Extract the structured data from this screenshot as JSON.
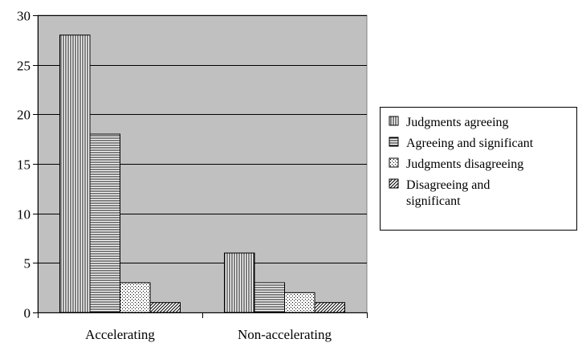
{
  "chart_data": {
    "type": "bar",
    "title": "",
    "xlabel": "",
    "ylabel": "",
    "categories": [
      "Accelerating",
      "Non-accelerating"
    ],
    "series": [
      {
        "name": "Judgments agreeing",
        "values": [
          28,
          6
        ],
        "pattern": "vertical-lines"
      },
      {
        "name": "Agreeing and significant",
        "values": [
          18,
          3
        ],
        "pattern": "horizontal-lines"
      },
      {
        "name": "Judgments disagreeing",
        "values": [
          3,
          2
        ],
        "pattern": "dots"
      },
      {
        "name": "Disagreeing and significant",
        "values": [
          1,
          1
        ],
        "pattern": "diagonal-lines"
      }
    ],
    "ylim": [
      0,
      30
    ],
    "yticks": [
      0,
      5,
      10,
      15,
      20,
      25,
      30
    ],
    "grid": true,
    "legend": "right",
    "colors": {
      "plot_background": "#c0c0c0",
      "bar_fill": "#ffffff",
      "bar_stroke": "#000000",
      "gridline": "#000000"
    }
  },
  "legend_lines": [
    [
      "Judgments agreeing"
    ],
    [
      "Agreeing and significant"
    ],
    [
      "Judgments disagreeing"
    ],
    [
      "Disagreeing and",
      "significant"
    ]
  ]
}
